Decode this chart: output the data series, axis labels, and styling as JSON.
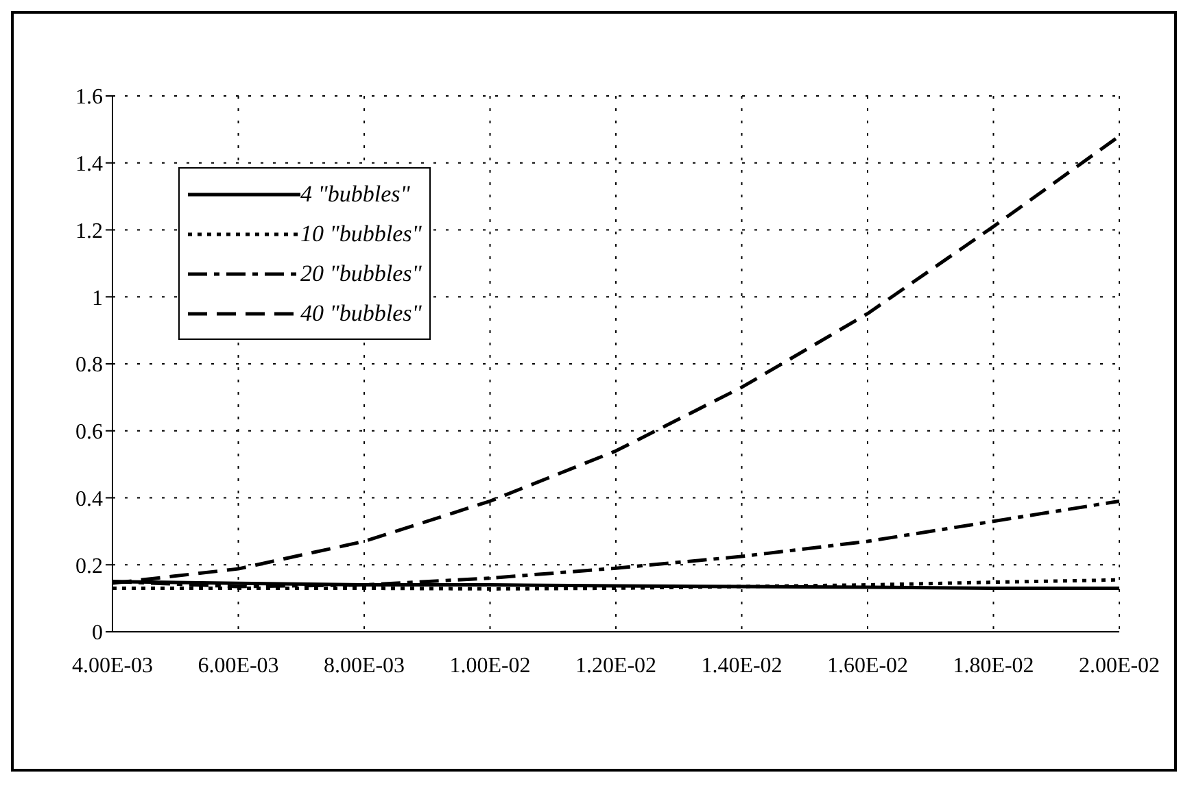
{
  "chart_data": {
    "type": "line",
    "x": [
      0.004,
      0.006,
      0.008,
      0.01,
      0.012,
      0.014,
      0.016,
      0.018,
      0.02
    ],
    "series": [
      {
        "name": "4 \"bubbles\"",
        "color": "#000000",
        "line_style": "solid",
        "values": [
          0.15,
          0.145,
          0.14,
          0.14,
          0.137,
          0.135,
          0.133,
          0.13,
          0.13
        ]
      },
      {
        "name": "10 \"bubbles\"",
        "color": "#000000",
        "line_style": "dotted",
        "values": [
          0.13,
          0.13,
          0.13,
          0.128,
          0.13,
          0.135,
          0.14,
          0.148,
          0.155
        ]
      },
      {
        "name": "20 \"bubbles\"",
        "color": "#000000",
        "line_style": "dashdot",
        "values": [
          0.15,
          0.135,
          0.14,
          0.16,
          0.19,
          0.225,
          0.27,
          0.33,
          0.39
        ]
      },
      {
        "name": "40 \"bubbles\"",
        "color": "#000000",
        "line_style": "dashed",
        "values": [
          0.145,
          0.188,
          0.27,
          0.39,
          0.54,
          0.73,
          0.95,
          1.21,
          1.48
        ]
      }
    ],
    "xlim": [
      0.004,
      0.02
    ],
    "xticks": [
      {
        "value": 0.004,
        "label": "4.00E-03"
      },
      {
        "value": 0.006,
        "label": "6.00E-03"
      },
      {
        "value": 0.008,
        "label": "8.00E-03"
      },
      {
        "value": 0.01,
        "label": "1.00E-02"
      },
      {
        "value": 0.012,
        "label": "1.20E-02"
      },
      {
        "value": 0.014,
        "label": "1.40E-02"
      },
      {
        "value": 0.016,
        "label": "1.60E-02"
      },
      {
        "value": 0.018,
        "label": "1.80E-02"
      },
      {
        "value": 0.02,
        "label": "2.00E-02"
      }
    ],
    "ylim": [
      0,
      1.6
    ],
    "yticks": [
      0,
      0.2,
      0.4,
      0.6,
      0.8,
      1,
      1.2,
      1.4,
      1.6
    ],
    "grid": true,
    "legend": "top left",
    "marker": "none"
  }
}
